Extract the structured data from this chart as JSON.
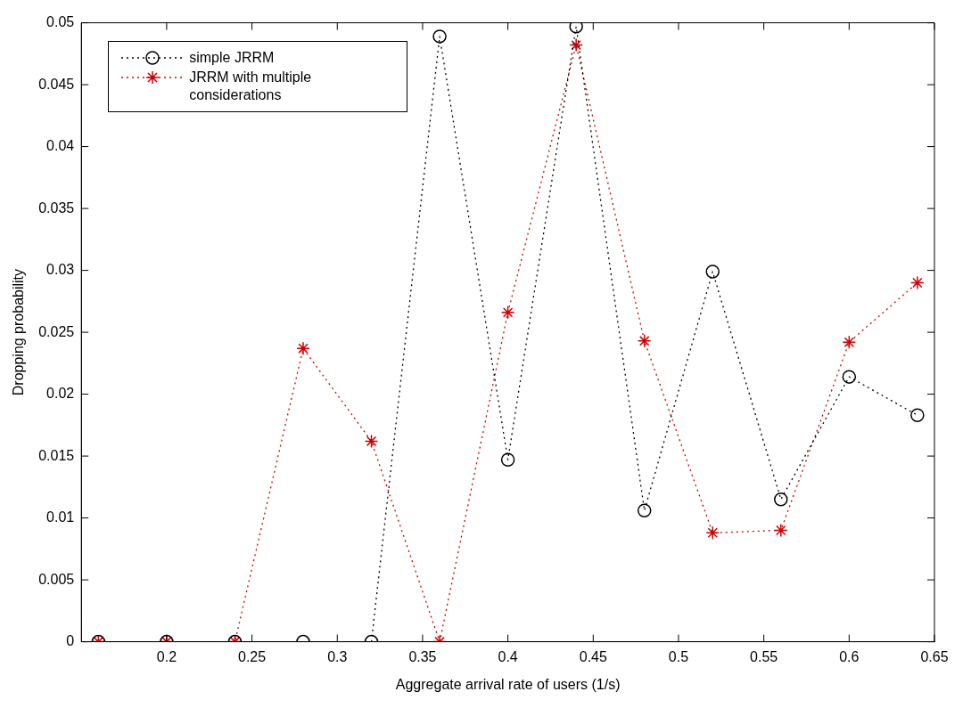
{
  "chart_data": {
    "type": "line",
    "xlabel": "Aggregate arrival rate of users (1/s)",
    "ylabel": "Dropping probability",
    "x": [
      0.16,
      0.2,
      0.24,
      0.28,
      0.32,
      0.36,
      0.4,
      0.44,
      0.48,
      0.52,
      0.56,
      0.6,
      0.64
    ],
    "series": [
      {
        "name": "simple JRRM",
        "color": "#000000",
        "marker": "circle",
        "values": [
          0,
          0,
          0,
          0,
          0,
          0.0489,
          0.0147,
          0.0497,
          0.0106,
          0.0299,
          0.0115,
          0.0214,
          0.0183
        ]
      },
      {
        "name": "JRRM with multiple considerations",
        "color": "#cc0000",
        "marker": "cross",
        "values": [
          0,
          0,
          0,
          0.0237,
          0.0162,
          0,
          0.0266,
          0.0482,
          0.0243,
          0.0088,
          0.009,
          0.0242,
          0.029
        ]
      }
    ],
    "xlim": [
      0.15,
      0.65
    ],
    "xticks": [
      0.2,
      0.25,
      0.3,
      0.35,
      0.4,
      0.45,
      0.5,
      0.55,
      0.6,
      0.65
    ],
    "ylim": [
      0,
      0.05
    ],
    "yticks": [
      0,
      0.005,
      0.01,
      0.015,
      0.02,
      0.025,
      0.03,
      0.035,
      0.04,
      0.045,
      0.05
    ],
    "grid": false,
    "legend": "top left",
    "line_style": "dotted"
  }
}
